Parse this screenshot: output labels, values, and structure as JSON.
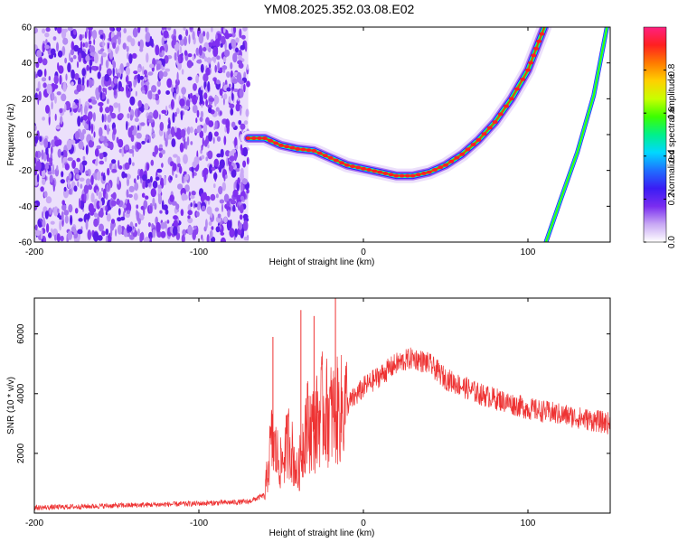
{
  "title": "YM08.2025.352.03.08.E02",
  "chart_data": [
    {
      "type": "heatmap",
      "xlabel": "Height of straight line (km)",
      "ylabel": "Frequency (Hz)",
      "xlim": [
        -200,
        150
      ],
      "ylim": [
        -60,
        60
      ],
      "x_ticks": [
        "-200",
        "-100",
        "0",
        "100"
      ],
      "y_ticks": [
        "-60",
        "-40",
        "-20",
        "0",
        "20",
        "40",
        "60"
      ],
      "noise_region_x": [
        -200,
        -70
      ],
      "main_track": {
        "x": [
          -70,
          -60,
          -50,
          -40,
          -30,
          -20,
          -10,
          0,
          10,
          20,
          30,
          40,
          50,
          60,
          70,
          80,
          90,
          100,
          105,
          110
        ],
        "y": [
          -2,
          -2,
          -6,
          -8,
          -9,
          -13,
          -17,
          -19,
          -21,
          -23,
          -23,
          -21,
          -17,
          -11,
          -3,
          7,
          20,
          36,
          48,
          60
        ]
      },
      "secondary_track": {
        "x": [
          111,
          120,
          130,
          140,
          148
        ],
        "y": [
          -60,
          -36,
          -10,
          22,
          60
        ]
      },
      "colorbar": {
        "label": "Normalized spectral amplitude",
        "ticks": [
          "0.0",
          "0.2",
          "0.4",
          "0.6",
          "0.8"
        ],
        "range": [
          0,
          1
        ],
        "colors": [
          "#ffffff",
          "#c8a8f4",
          "#7a2df0",
          "#3a1cf4",
          "#1f6fff",
          "#00d8ff",
          "#00f08a",
          "#3cff00",
          "#c8ff00",
          "#ffd000",
          "#ff7a00",
          "#ff2020",
          "#ff2080"
        ]
      }
    },
    {
      "type": "line",
      "xlabel": "Height of straight line (km)",
      "ylabel": "SNR (10 * v/v)",
      "xlim": [
        -200,
        150
      ],
      "ylim": [
        0,
        7200
      ],
      "x_ticks": [
        "-200",
        "-100",
        "0",
        "100"
      ],
      "y_ticks": [
        "2000",
        "4000",
        "6000"
      ],
      "color": "#ee3333",
      "trend": {
        "x": [
          -200,
          -150,
          -100,
          -70,
          -60,
          -56,
          -50,
          -45,
          -40,
          -35,
          -30,
          -25,
          -20,
          -15,
          -10,
          0,
          10,
          20,
          30,
          40,
          50,
          70,
          100,
          150
        ],
        "y": [
          180,
          250,
          320,
          380,
          600,
          2400,
          1600,
          2500,
          1200,
          3000,
          2800,
          3500,
          3300,
          3400,
          3600,
          4200,
          4600,
          5000,
          5200,
          5000,
          4500,
          4000,
          3500,
          3000
        ]
      },
      "spikes": [
        {
          "x": -55,
          "y": 5900
        },
        {
          "x": -38,
          "y": 6800
        },
        {
          "x": -30,
          "y": 6600
        },
        {
          "x": -17,
          "y": 7200
        }
      ]
    }
  ]
}
